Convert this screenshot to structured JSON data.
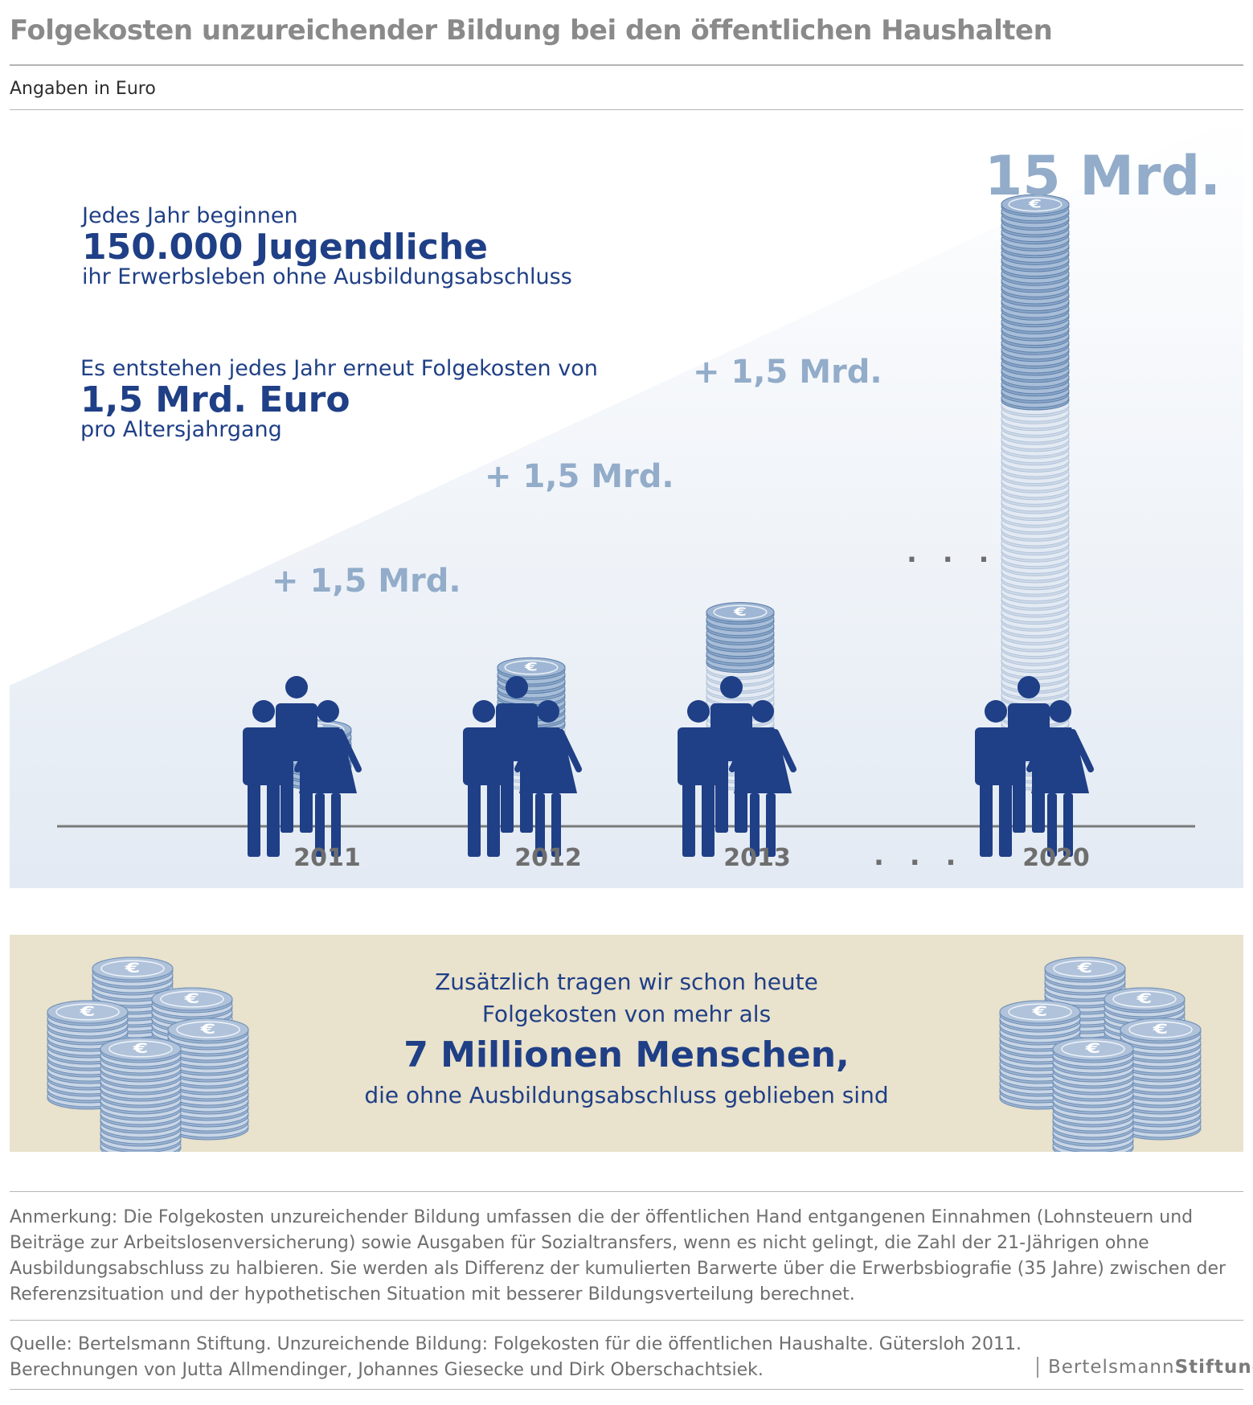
{
  "header": {
    "title": "Folgekosten unzureichender Bildung bei den öffentlichen Haushalten",
    "subtitle": "Angaben in Euro"
  },
  "intro": {
    "line1": "Jedes Jahr beginnen",
    "line2": "150.000 Jugendliche",
    "line3": "ihr Erwerbsleben ohne Ausbildungsabschluss",
    "line4": "Es entstehen jedes Jahr erneut Folgekosten von",
    "line5": "1,5 Mrd. Euro",
    "line6": "pro Altersjahrgang"
  },
  "chart_data": {
    "type": "bar",
    "categories": [
      "2011",
      "2012",
      "2013",
      "2020"
    ],
    "values": [
      1.5,
      3.0,
      4.5,
      15
    ],
    "increment_labels": [
      "+ 1,5 Mrd.",
      "+ 1,5 Mrd.",
      "+ 1,5 Mrd."
    ],
    "total_label": "15 Mrd.",
    "ellipsis": ". . .",
    "ylim": [
      0,
      15
    ]
  },
  "callout": {
    "line1": "Zusätzlich tragen wir schon heute",
    "line2": "Folgekosten von mehr als",
    "line3": "7 Millionen Menschen",
    "line3_suffix": ",",
    "line4": "die ohne Ausbildungsabschluss geblieben sind"
  },
  "note": "Anmerkung: Die Folgekosten unzureichender Bildung umfassen die der öffentlichen Hand entgangenen Einnahmen (Lohnsteuern und Beiträge zur Arbeitslosenversicherung) sowie Ausgaben für Sozialtransfers, wenn es nicht gelingt, die Zahl der 21-Jährigen ohne Ausbildungsabschluss zu halbieren. Sie werden als Differenz der kumulierten Barwerte über die Erwerbsbiografie (35 Jahre) zwischen der Referenzsituation und der hypothetischen Situation mit besserer Bildungsverteilung berechnet.",
  "source": {
    "line1": "Quelle: Bertelsmann Stiftung. Unzureichende Bildung: Folgekosten für die öffentlichen Haushalte. Gütersloh 2011.",
    "line2": "Berechnungen von Jutta Allmendinger, Johannes Giesecke und Dirk Oberschachtsiek."
  },
  "logo": {
    "part1": "Bertelsmann",
    "part2": "Stiftung"
  },
  "colors": {
    "dark_blue": "#1f3f86",
    "light_blue": "#92acc9",
    "coin_dark": "#6e8fb8",
    "coin_light": "#b8cbe0",
    "beige": "#e9e2cc",
    "gray": "#6e6e6e"
  }
}
